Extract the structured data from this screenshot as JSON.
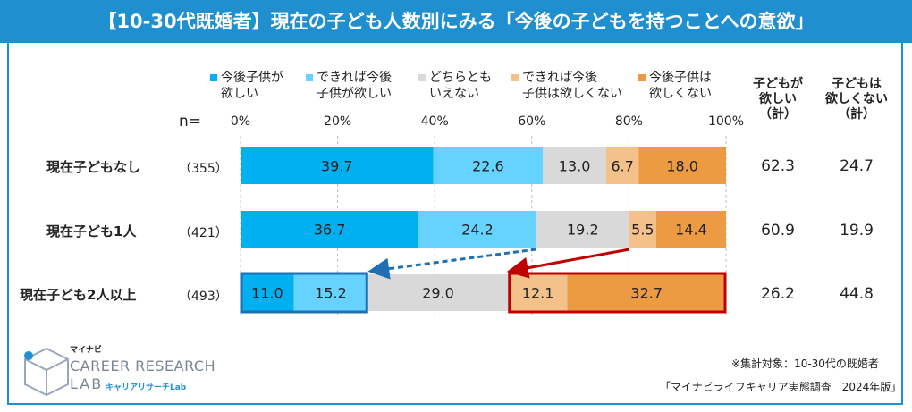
{
  "title": "【10-30代既婚者】現在の子ども人数別にみる「今後の子どもを持つことへの意欲」",
  "n_label": "n=",
  "legend": [
    {
      "line1": "今後子供が",
      "line2": "欲しい",
      "color": "#00b0f0"
    },
    {
      "line1": "できれば今後",
      "line2": "子供が欲しい",
      "color": "#66d2ff"
    },
    {
      "line1": "どちらとも",
      "line2": "いえない",
      "color": "#d9d9d9"
    },
    {
      "line1": "できれば今後",
      "line2": "子供は欲しくない",
      "color": "#f4c18a"
    },
    {
      "line1": "今後子供は",
      "line2": "欲しくない",
      "color": "#ed9b43"
    }
  ],
  "summary_headers": [
    {
      "line1": "子どもが",
      "line2": "欲しい",
      "line3": "（計）"
    },
    {
      "line1": "子どもは",
      "line2": "欲しくない",
      "line3": "（計）"
    }
  ],
  "rows": [
    {
      "label": "現在子どもなし",
      "n": "（355）",
      "want": "62.3",
      "not_want": "24.7"
    },
    {
      "label": "現在子ども1人",
      "n": "（421）",
      "want": "60.9",
      "not_want": "19.9"
    },
    {
      "label": "現在子ども2人以上",
      "n": "（493）",
      "want": "26.2",
      "not_want": "44.8"
    }
  ],
  "chart_data": {
    "type": "bar",
    "orientation": "horizontal-stacked-100",
    "categories": [
      "現在子どもなし",
      "現在子ども1人",
      "現在子ども2人以上"
    ],
    "series": [
      {
        "name": "今後子供が欲しい",
        "values": [
          39.7,
          36.7,
          11.0
        ]
      },
      {
        "name": "できれば今後子供が欲しい",
        "values": [
          22.6,
          24.2,
          15.2
        ]
      },
      {
        "name": "どちらともいえない",
        "values": [
          13.0,
          19.2,
          29.0
        ]
      },
      {
        "name": "できれば今後子供は欲しくない",
        "values": [
          6.7,
          5.5,
          12.1
        ]
      },
      {
        "name": "今後子供は欲しくない",
        "values": [
          18.0,
          14.4,
          32.7
        ]
      }
    ],
    "xlim": [
      0,
      100
    ],
    "ticks": [
      "0%",
      "20%",
      "40%",
      "60%",
      "80%",
      "100%"
    ],
    "tick_values": [
      0,
      20,
      40,
      60,
      80,
      100
    ]
  },
  "notes": {
    "target": "※集計対象：10-30代の既婚者",
    "source": "「マイナビライフキャリア実態調査　2024年版」"
  },
  "logo": {
    "top": "マイナビ",
    "main": "CAREER RESEARCH",
    "lab": "LAB",
    "sub": "キャリアリサーチLab"
  }
}
